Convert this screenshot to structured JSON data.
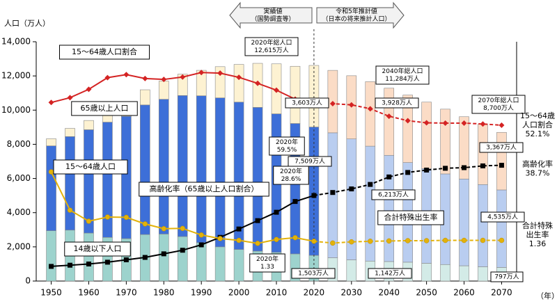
{
  "chart_data": {
    "type": "bar",
    "stacked": true,
    "y_label": "人口（万人）",
    "x_unit": "（年）",
    "x": [
      1950,
      1955,
      1960,
      1965,
      1970,
      1975,
      1980,
      1985,
      1990,
      1995,
      2000,
      2005,
      2010,
      2015,
      2020,
      2025,
      2030,
      2035,
      2040,
      2045,
      2050,
      2055,
      2060,
      2065,
      2070
    ],
    "xlim": [
      1946,
      2074
    ],
    "xticks": [
      1950,
      1960,
      1970,
      1980,
      1990,
      2000,
      2010,
      2020,
      2030,
      2040,
      2050,
      2060,
      2070
    ],
    "ylim": [
      0,
      14000
    ],
    "yticks": [
      0,
      {
        "value": 2000,
        "label": "2,000"
      },
      {
        "value": 4000,
        "label": "4,000"
      },
      {
        "value": 6000,
        "label": "6,000"
      },
      {
        "value": 8000,
        "label": "8,000"
      },
      {
        "value": 10000,
        "label": "10,000"
      },
      {
        "value": 12000,
        "label": "12,000"
      },
      {
        "value": 14000,
        "label": "14,000"
      }
    ],
    "y2lim": [
      0,
      80
    ],
    "y3lim": [
      0,
      8
    ],
    "projection_from": 2020,
    "series": [
      {
        "name": "14歳以下人口",
        "color": "#9dd3cd",
        "projection_color": "#d3ebe7",
        "values": [
          2943,
          2980,
          2807,
          2553,
          2482,
          2722,
          2751,
          2603,
          2249,
          2001,
          1847,
          1752,
          1680,
          1589,
          1503,
          1363,
          1240,
          1169,
          1142,
          1103,
          1041,
          966,
          893,
          836,
          797
        ],
        "value_labels": [
          null,
          null,
          null,
          null,
          null,
          null,
          null,
          null,
          null,
          null,
          null,
          null,
          null,
          null,
          "1,503万人",
          null,
          null,
          null,
          "1,142万人",
          null,
          null,
          null,
          null,
          null,
          "797万人"
        ]
      },
      {
        "name": "15～64歳人口",
        "color": "#3d6fd8",
        "projection_color": "#b9cdf0",
        "values": [
          4966,
          5473,
          6047,
          6744,
          7157,
          7581,
          7883,
          8251,
          8590,
          8716,
          8622,
          8409,
          8103,
          7629,
          7509,
          7310,
          7076,
          6722,
          6213,
          5832,
          5540,
          5302,
          5078,
          4809,
          4535
        ],
        "value_labels": [
          null,
          null,
          null,
          null,
          null,
          null,
          null,
          null,
          null,
          null,
          null,
          null,
          null,
          null,
          "7,509万人",
          null,
          null,
          null,
          "6,213万人",
          null,
          null,
          null,
          null,
          null,
          "4,535万人"
        ]
      },
      {
        "name": "65歳以上人口",
        "color": "#fdf2d2",
        "projection_color": "#fbdcc6",
        "values": [
          416,
          479,
          540,
          624,
          739,
          887,
          1065,
          1247,
          1489,
          1826,
          2204,
          2576,
          2925,
          3347,
          3603,
          3653,
          3696,
          3773,
          3928,
          3945,
          3888,
          3790,
          3644,
          3529,
          3367
        ],
        "value_labels": [
          null,
          null,
          null,
          null,
          null,
          null,
          null,
          null,
          null,
          null,
          null,
          null,
          null,
          null,
          "3,603万人",
          null,
          null,
          null,
          "3,928万人",
          null,
          null,
          null,
          null,
          null,
          "3,367万人"
        ]
      },
      {
        "name": "15～64歳人口割合",
        "type": "line",
        "axis": "y2",
        "color": "#d42323",
        "marker": "diamond",
        "values": [
          59.7,
          61.3,
          64.1,
          68.0,
          69.0,
          67.7,
          67.4,
          68.2,
          69.7,
          69.5,
          68.1,
          66.1,
          63.8,
          60.8,
          59.5,
          59.3,
          58.9,
          57.6,
          55.1,
          53.6,
          52.9,
          52.8,
          52.8,
          52.5,
          52.1
        ]
      },
      {
        "name": "高齢化率（65歳以上人口割合）",
        "type": "line",
        "axis": "y2",
        "color": "#000000",
        "marker": "square",
        "values": [
          4.9,
          5.3,
          5.7,
          6.3,
          7.1,
          7.9,
          9.1,
          10.3,
          12.1,
          14.6,
          17.4,
          20.2,
          23.0,
          26.6,
          28.6,
          29.6,
          30.8,
          32.3,
          34.8,
          36.3,
          37.1,
          37.7,
          37.9,
          38.5,
          38.7
        ]
      },
      {
        "name": "合計特殊出生率",
        "type": "line",
        "axis": "y3",
        "color": "#e3b20a",
        "marker": "circle",
        "values": [
          3.65,
          2.37,
          2.0,
          2.14,
          2.13,
          1.91,
          1.75,
          1.76,
          1.54,
          1.42,
          1.36,
          1.26,
          1.39,
          1.45,
          1.33,
          1.27,
          1.31,
          1.33,
          1.34,
          1.35,
          1.35,
          1.36,
          1.36,
          1.36,
          1.36
        ]
      }
    ],
    "arrows": [
      [
        "実績値",
        "（国勢調査等）"
      ],
      [
        "令和5年推計値",
        "（日本の将来推計人口）"
      ]
    ],
    "annotations": [
      [
        "2020年総人口",
        "12,615万人"
      ],
      [
        "2040年総人口",
        "11,284万人"
      ],
      [
        "2070年総人口",
        "8,700万人"
      ],
      [
        "2020年",
        "59.5%"
      ],
      [
        "2020年",
        "28.6%"
      ],
      [
        "2020年",
        "1.33"
      ],
      [
        "15～64歳",
        "人口割合",
        "52.1%"
      ],
      [
        "高齢化率",
        "38.7%"
      ],
      [
        "合計特殊",
        "出生率",
        "1.36"
      ]
    ]
  }
}
